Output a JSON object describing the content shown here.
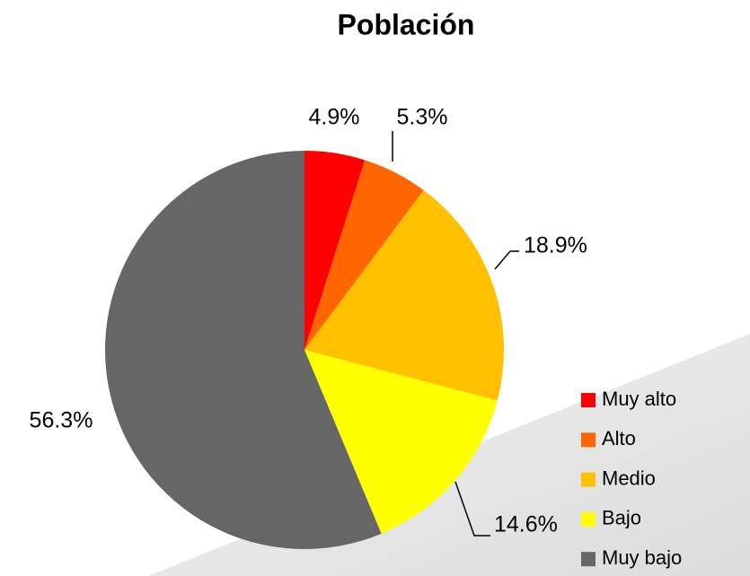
{
  "chart_data": {
    "type": "pie",
    "title": "Población",
    "categories": [
      "Muy alto",
      "Alto",
      "Medio",
      "Bajo",
      "Muy bajo"
    ],
    "values": [
      4.9,
      5.3,
      18.9,
      14.6,
      56.3
    ],
    "value_labels": [
      "4.9%",
      "5.3%",
      "18.9%",
      "14.6%",
      "56.3%"
    ],
    "colors": [
      "#ff0000",
      "#ff6600",
      "#ffc000",
      "#ffff00",
      "#666666"
    ],
    "legend": "right"
  }
}
